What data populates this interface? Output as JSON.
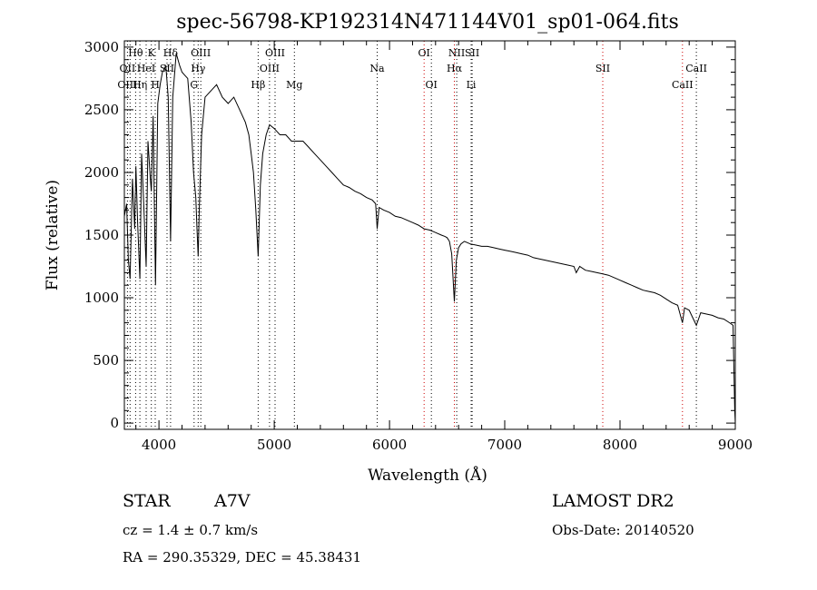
{
  "chart_data": {
    "type": "line",
    "title": "spec-56798-KP192314N471144V01_sp01-064.fits",
    "xlabel": "Wavelength (Å)",
    "ylabel": "Flux (relative)",
    "xlim": [
      3700,
      9000
    ],
    "ylim": [
      -50,
      3050
    ],
    "x_ticks": [
      4000,
      5000,
      6000,
      7000,
      8000,
      9000
    ],
    "y_ticks": [
      0,
      500,
      1000,
      1500,
      2000,
      2500,
      3000
    ],
    "grid": false,
    "series": [
      {
        "name": "Flux",
        "points": [
          [
            3700,
            1650
          ],
          [
            3720,
            1750
          ],
          [
            3735,
            1300
          ],
          [
            3750,
            1150
          ],
          [
            3770,
            1950
          ],
          [
            3790,
            1550
          ],
          [
            3800,
            2050
          ],
          [
            3815,
            1600
          ],
          [
            3835,
            1150
          ],
          [
            3850,
            2150
          ],
          [
            3870,
            1700
          ],
          [
            3889,
            1250
          ],
          [
            3905,
            2250
          ],
          [
            3925,
            1950
          ],
          [
            3934,
            1850
          ],
          [
            3950,
            2450
          ],
          [
            3970,
            1100
          ],
          [
            3990,
            2550
          ],
          [
            4010,
            2700
          ],
          [
            4030,
            2800
          ],
          [
            4060,
            2850
          ],
          [
            4080,
            2600
          ],
          [
            4101,
            1450
          ],
          [
            4120,
            2600
          ],
          [
            4150,
            2950
          ],
          [
            4180,
            2850
          ],
          [
            4200,
            2800
          ],
          [
            4220,
            2780
          ],
          [
            4250,
            2750
          ],
          [
            4280,
            2400
          ],
          [
            4300,
            2000
          ],
          [
            4320,
            1800
          ],
          [
            4330,
            1550
          ],
          [
            4340,
            1330
          ],
          [
            4350,
            1700
          ],
          [
            4370,
            2300
          ],
          [
            4400,
            2600
          ],
          [
            4450,
            2650
          ],
          [
            4500,
            2700
          ],
          [
            4550,
            2600
          ],
          [
            4600,
            2550
          ],
          [
            4650,
            2600
          ],
          [
            4700,
            2500
          ],
          [
            4750,
            2400
          ],
          [
            4780,
            2300
          ],
          [
            4800,
            2150
          ],
          [
            4820,
            2000
          ],
          [
            4840,
            1700
          ],
          [
            4861,
            1330
          ],
          [
            4880,
            1900
          ],
          [
            4900,
            2150
          ],
          [
            4930,
            2300
          ],
          [
            4960,
            2380
          ],
          [
            5000,
            2350
          ],
          [
            5050,
            2300
          ],
          [
            5100,
            2300
          ],
          [
            5150,
            2250
          ],
          [
            5200,
            2250
          ],
          [
            5250,
            2250
          ],
          [
            5300,
            2200
          ],
          [
            5350,
            2150
          ],
          [
            5400,
            2100
          ],
          [
            5450,
            2050
          ],
          [
            5500,
            2000
          ],
          [
            5550,
            1950
          ],
          [
            5600,
            1900
          ],
          [
            5650,
            1880
          ],
          [
            5700,
            1850
          ],
          [
            5750,
            1830
          ],
          [
            5800,
            1800
          ],
          [
            5850,
            1780
          ],
          [
            5880,
            1750
          ],
          [
            5893,
            1550
          ],
          [
            5910,
            1720
          ],
          [
            5950,
            1700
          ],
          [
            6000,
            1680
          ],
          [
            6050,
            1650
          ],
          [
            6100,
            1640
          ],
          [
            6150,
            1620
          ],
          [
            6200,
            1600
          ],
          [
            6250,
            1580
          ],
          [
            6300,
            1550
          ],
          [
            6350,
            1540
          ],
          [
            6400,
            1520
          ],
          [
            6450,
            1500
          ],
          [
            6480,
            1490
          ],
          [
            6500,
            1480
          ],
          [
            6520,
            1450
          ],
          [
            6540,
            1350
          ],
          [
            6563,
            970
          ],
          [
            6580,
            1300
          ],
          [
            6600,
            1400
          ],
          [
            6620,
            1430
          ],
          [
            6650,
            1450
          ],
          [
            6700,
            1430
          ],
          [
            6750,
            1420
          ],
          [
            6800,
            1410
          ],
          [
            6850,
            1410
          ],
          [
            6900,
            1400
          ],
          [
            6950,
            1390
          ],
          [
            7000,
            1380
          ],
          [
            7050,
            1370
          ],
          [
            7100,
            1360
          ],
          [
            7150,
            1350
          ],
          [
            7200,
            1340
          ],
          [
            7250,
            1320
          ],
          [
            7300,
            1310
          ],
          [
            7350,
            1300
          ],
          [
            7400,
            1290
          ],
          [
            7450,
            1280
          ],
          [
            7500,
            1270
          ],
          [
            7550,
            1260
          ],
          [
            7600,
            1250
          ],
          [
            7620,
            1200
          ],
          [
            7650,
            1250
          ],
          [
            7700,
            1220
          ],
          [
            7750,
            1210
          ],
          [
            7800,
            1200
          ],
          [
            7850,
            1190
          ],
          [
            7900,
            1180
          ],
          [
            7950,
            1160
          ],
          [
            8000,
            1140
          ],
          [
            8050,
            1120
          ],
          [
            8100,
            1100
          ],
          [
            8150,
            1080
          ],
          [
            8200,
            1060
          ],
          [
            8250,
            1050
          ],
          [
            8300,
            1040
          ],
          [
            8350,
            1020
          ],
          [
            8400,
            990
          ],
          [
            8450,
            960
          ],
          [
            8500,
            940
          ],
          [
            8542,
            800
          ],
          [
            8560,
            920
          ],
          [
            8600,
            900
          ],
          [
            8662,
            780
          ],
          [
            8700,
            880
          ],
          [
            8750,
            870
          ],
          [
            8800,
            860
          ],
          [
            8850,
            840
          ],
          [
            8900,
            830
          ],
          [
            8950,
            800
          ],
          [
            8980,
            780
          ],
          [
            8995,
            100
          ],
          [
            9000,
            0
          ]
        ]
      }
    ],
    "line_annotations": [
      {
        "label": "Hθ",
        "wavelength": 3798,
        "row": 0
      },
      {
        "label": "K",
        "wavelength": 3934,
        "row": 0
      },
      {
        "label": "Hδ",
        "wavelength": 4101,
        "row": 0
      },
      {
        "label": "OIII",
        "wavelength": 4363,
        "row": 0
      },
      {
        "label": "OIII",
        "wavelength": 5007,
        "row": 0
      },
      {
        "label": "OI",
        "wavelength": 6300,
        "row": 0
      },
      {
        "label": "NII",
        "wavelength": 6583,
        "row": 0
      },
      {
        "label": "SII",
        "wavelength": 6717,
        "row": 0
      },
      {
        "label": "OII",
        "wavelength": 3727,
        "row": 1
      },
      {
        "label": "HeI",
        "wavelength": 3889,
        "row": 1
      },
      {
        "label": "SII",
        "wavelength": 4070,
        "row": 1
      },
      {
        "label": "Hγ",
        "wavelength": 4340,
        "row": 1
      },
      {
        "label": "OIII",
        "wavelength": 4959,
        "row": 1
      },
      {
        "label": "Na",
        "wavelength": 5893,
        "row": 1
      },
      {
        "label": "Hα",
        "wavelength": 6563,
        "row": 1
      },
      {
        "label": "SII",
        "wavelength": 7850,
        "row": 1
      },
      {
        "label": "CaII",
        "wavelength": 8662,
        "row": 1
      },
      {
        "label": "OIII",
        "wavelength": 3727,
        "row": 2
      },
      {
        "label": "Hη",
        "wavelength": 3835,
        "row": 2
      },
      {
        "label": "H",
        "wavelength": 3968,
        "row": 2
      },
      {
        "label": "G",
        "wavelength": 4305,
        "row": 2
      },
      {
        "label": "Hβ",
        "wavelength": 4861,
        "row": 2
      },
      {
        "label": "Mg",
        "wavelength": 5175,
        "row": 2
      },
      {
        "label": "OI",
        "wavelength": 6363,
        "row": 2
      },
      {
        "label": "Li",
        "wavelength": 6708,
        "row": 2
      },
      {
        "label": "CaII",
        "wavelength": 8542,
        "row": 2
      }
    ],
    "marker_lines": [
      {
        "wavelength": 3727,
        "color": "#000000"
      },
      {
        "wavelength": 3750,
        "color": "#000000"
      },
      {
        "wavelength": 3798,
        "color": "#000000"
      },
      {
        "wavelength": 3835,
        "color": "#000000"
      },
      {
        "wavelength": 3889,
        "color": "#000000"
      },
      {
        "wavelength": 3934,
        "color": "#000000"
      },
      {
        "wavelength": 3968,
        "color": "#000000"
      },
      {
        "wavelength": 4070,
        "color": "#000000"
      },
      {
        "wavelength": 4101,
        "color": "#000000"
      },
      {
        "wavelength": 4305,
        "color": "#000000"
      },
      {
        "wavelength": 4340,
        "color": "#000000"
      },
      {
        "wavelength": 4363,
        "color": "#000000"
      },
      {
        "wavelength": 4861,
        "color": "#000000"
      },
      {
        "wavelength": 4959,
        "color": "#000000"
      },
      {
        "wavelength": 5007,
        "color": "#000000"
      },
      {
        "wavelength": 5175,
        "color": "#000000"
      },
      {
        "wavelength": 5893,
        "color": "#000000"
      },
      {
        "wavelength": 6300,
        "color": "#cc0000"
      },
      {
        "wavelength": 6363,
        "color": "#000000"
      },
      {
        "wavelength": 6563,
        "color": "#cc0000"
      },
      {
        "wavelength": 6583,
        "color": "#000000"
      },
      {
        "wavelength": 6708,
        "color": "#000000"
      },
      {
        "wavelength": 6717,
        "color": "#000000"
      },
      {
        "wavelength": 7850,
        "color": "#cc0000"
      },
      {
        "wavelength": 8542,
        "color": "#cc0000"
      },
      {
        "wavelength": 8662,
        "color": "#000000"
      }
    ]
  },
  "info": {
    "object_class": "STAR",
    "subclass": "A7V",
    "survey": "LAMOST DR2",
    "cz": "cz = 1.4 ± 0.7 km/s",
    "obs_date": "Obs-Date: 20140520",
    "coords": "RA = 290.35329, DEC =  45.38431"
  }
}
